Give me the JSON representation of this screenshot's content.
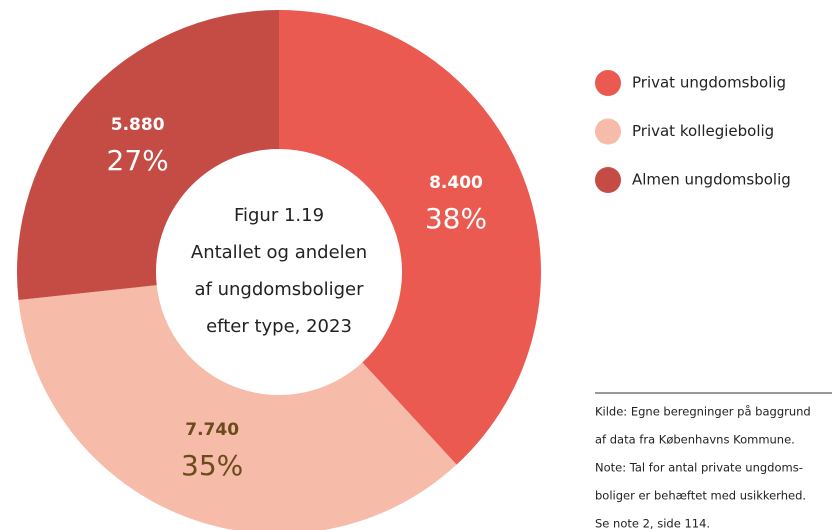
{
  "chart_data": {
    "type": "donut",
    "title": [
      "Figur 1.19",
      "Antallet og andelen",
      "af ungdomsboliger",
      "efter type, 2023"
    ],
    "categories": [
      "Privat ungdomsbolig",
      "Privat kollegiebolig",
      "Almen ungdomsbolig"
    ],
    "values": [
      8400,
      7740,
      5880
    ],
    "value_labels": [
      "8.400",
      "7.740",
      "5.880"
    ],
    "shares": [
      38,
      35,
      27
    ],
    "share_labels": [
      "38%",
      "35%",
      "27%"
    ],
    "colors": [
      "#ea5a50",
      "#f6bba9",
      "#c54c44"
    ],
    "label_colors": [
      "#ffffff",
      "#6b4a1c",
      "#ffffff"
    ],
    "notes": [
      "Kilde: Egne beregninger på baggrund",
      "af data fra Københavns Kommune.",
      "Note: Tal for antal private ungdoms-",
      "boliger er behæftet med usikkerhed.",
      "Se note 2, side 114."
    ]
  }
}
